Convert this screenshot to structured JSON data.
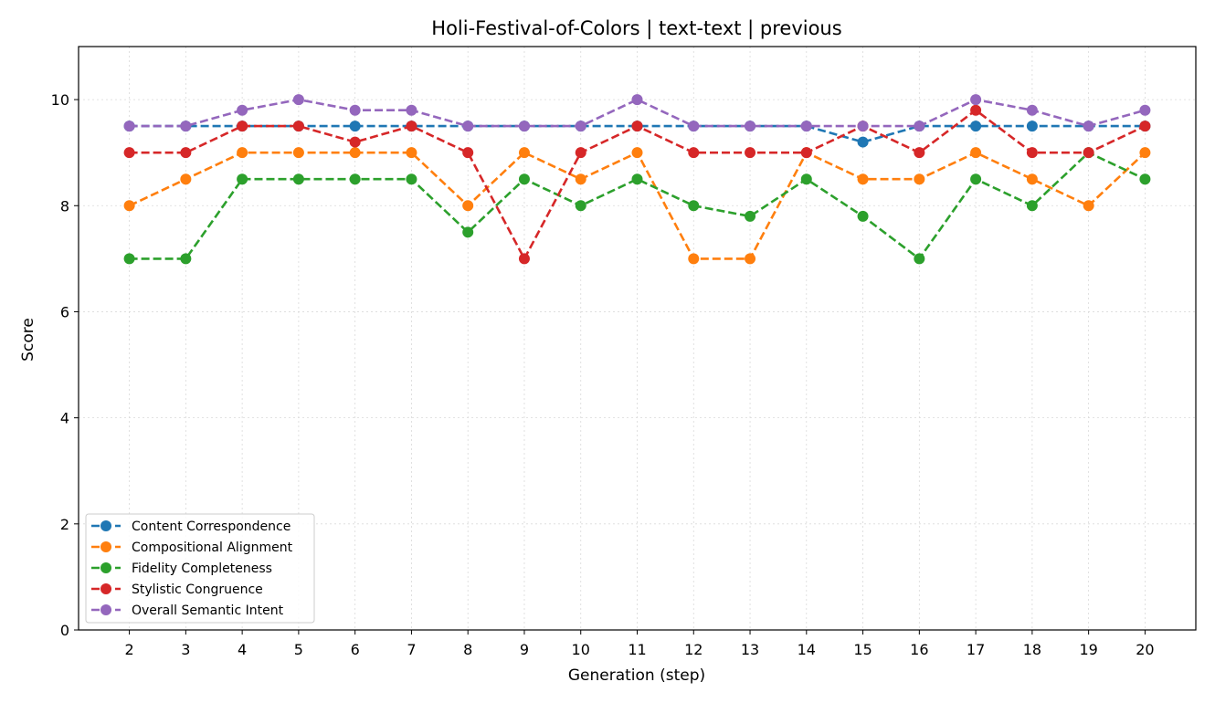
{
  "chart_data": {
    "type": "line",
    "title": "Holi-Festival-of-Colors | text-text | previous",
    "xlabel": "Generation (step)",
    "ylabel": "Score",
    "x": [
      2,
      3,
      4,
      5,
      6,
      7,
      8,
      9,
      10,
      11,
      12,
      13,
      14,
      15,
      16,
      17,
      18,
      19,
      20
    ],
    "xlim": [
      1.1,
      20.9
    ],
    "ylim": [
      0,
      11
    ],
    "yticks": [
      0,
      2,
      4,
      6,
      8,
      10
    ],
    "grid": true,
    "legend_position": "lower-left",
    "series": [
      {
        "name": "Content Correspondence",
        "color": "#1f77b4",
        "values": [
          9.5,
          9.5,
          9.5,
          9.5,
          9.5,
          9.5,
          9.5,
          9.5,
          9.5,
          9.5,
          9.5,
          9.5,
          9.5,
          9.2,
          9.5,
          9.5,
          9.5,
          9.5,
          9.5
        ]
      },
      {
        "name": "Compositional Alignment",
        "color": "#ff7f0e",
        "values": [
          8.0,
          8.5,
          9.0,
          9.0,
          9.0,
          9.0,
          8.0,
          9.0,
          8.5,
          9.0,
          7.0,
          7.0,
          9.0,
          8.5,
          8.5,
          9.0,
          8.5,
          8.0,
          9.0
        ]
      },
      {
        "name": "Fidelity Completeness",
        "color": "#2ca02c",
        "values": [
          7.0,
          7.0,
          8.5,
          8.5,
          8.5,
          8.5,
          7.5,
          8.5,
          8.0,
          8.5,
          8.0,
          7.8,
          8.5,
          7.8,
          7.0,
          8.5,
          8.0,
          9.0,
          8.5
        ]
      },
      {
        "name": "Stylistic Congruence",
        "color": "#d62728",
        "values": [
          9.0,
          9.0,
          9.5,
          9.5,
          9.2,
          9.5,
          9.0,
          7.0,
          9.0,
          9.5,
          9.0,
          9.0,
          9.0,
          9.5,
          9.0,
          9.8,
          9.0,
          9.0,
          9.5
        ]
      },
      {
        "name": "Overall Semantic Intent",
        "color": "#9467bd",
        "values": [
          9.5,
          9.5,
          9.8,
          10.0,
          9.8,
          9.8,
          9.5,
          9.5,
          9.5,
          10.0,
          9.5,
          9.5,
          9.5,
          9.5,
          9.5,
          10.0,
          9.8,
          9.5,
          9.8
        ]
      }
    ]
  }
}
